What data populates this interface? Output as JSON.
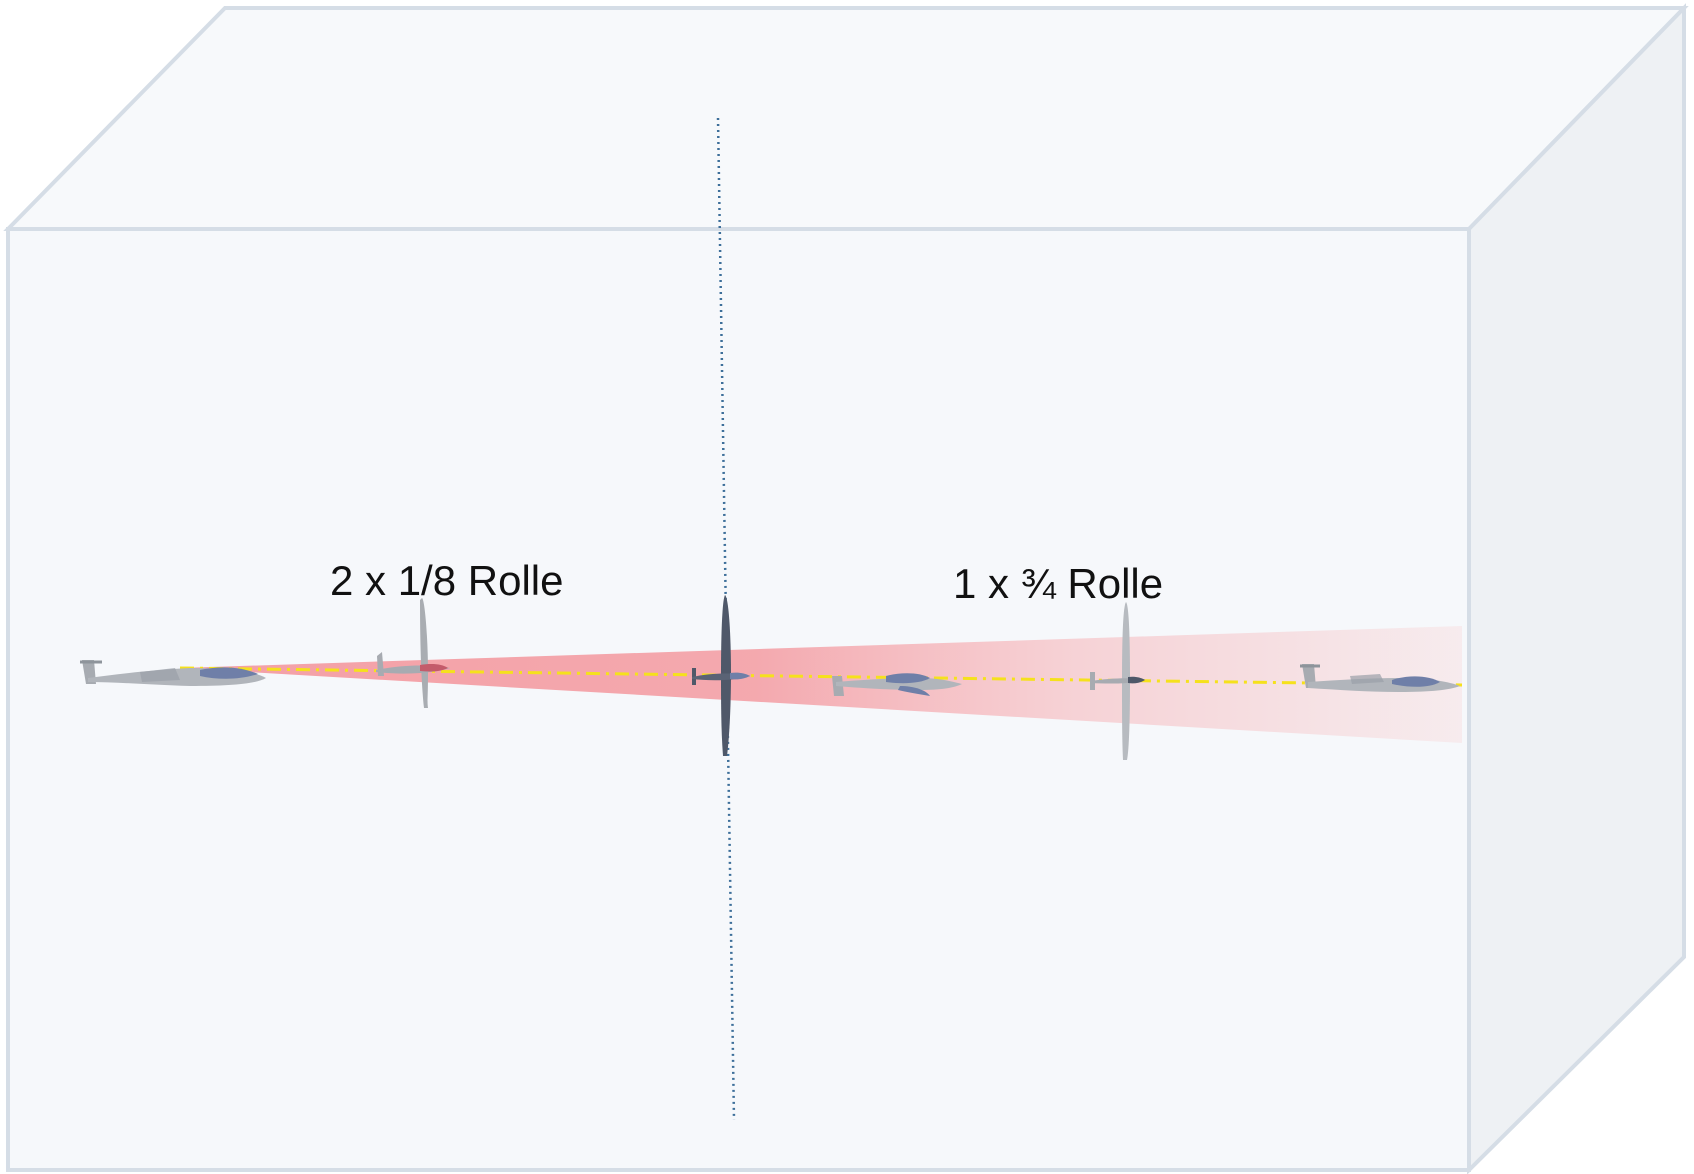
{
  "labels": {
    "left": "2 x 1/8 Rolle",
    "right": "1 x ¾ Rolle"
  },
  "colors": {
    "box_edge": "#d5dde6",
    "box_face": "#f6f8fb",
    "box_side": "#eef1f4",
    "beam": "#f4a0a6",
    "flight_path": "#f5e11c",
    "center_axis": "#3d6f9a",
    "glider_light": "#a7abb1",
    "glider_dark": "#4f5869",
    "glider_canopy": "#6f7fa8"
  },
  "icons": [
    "glider-icon"
  ]
}
